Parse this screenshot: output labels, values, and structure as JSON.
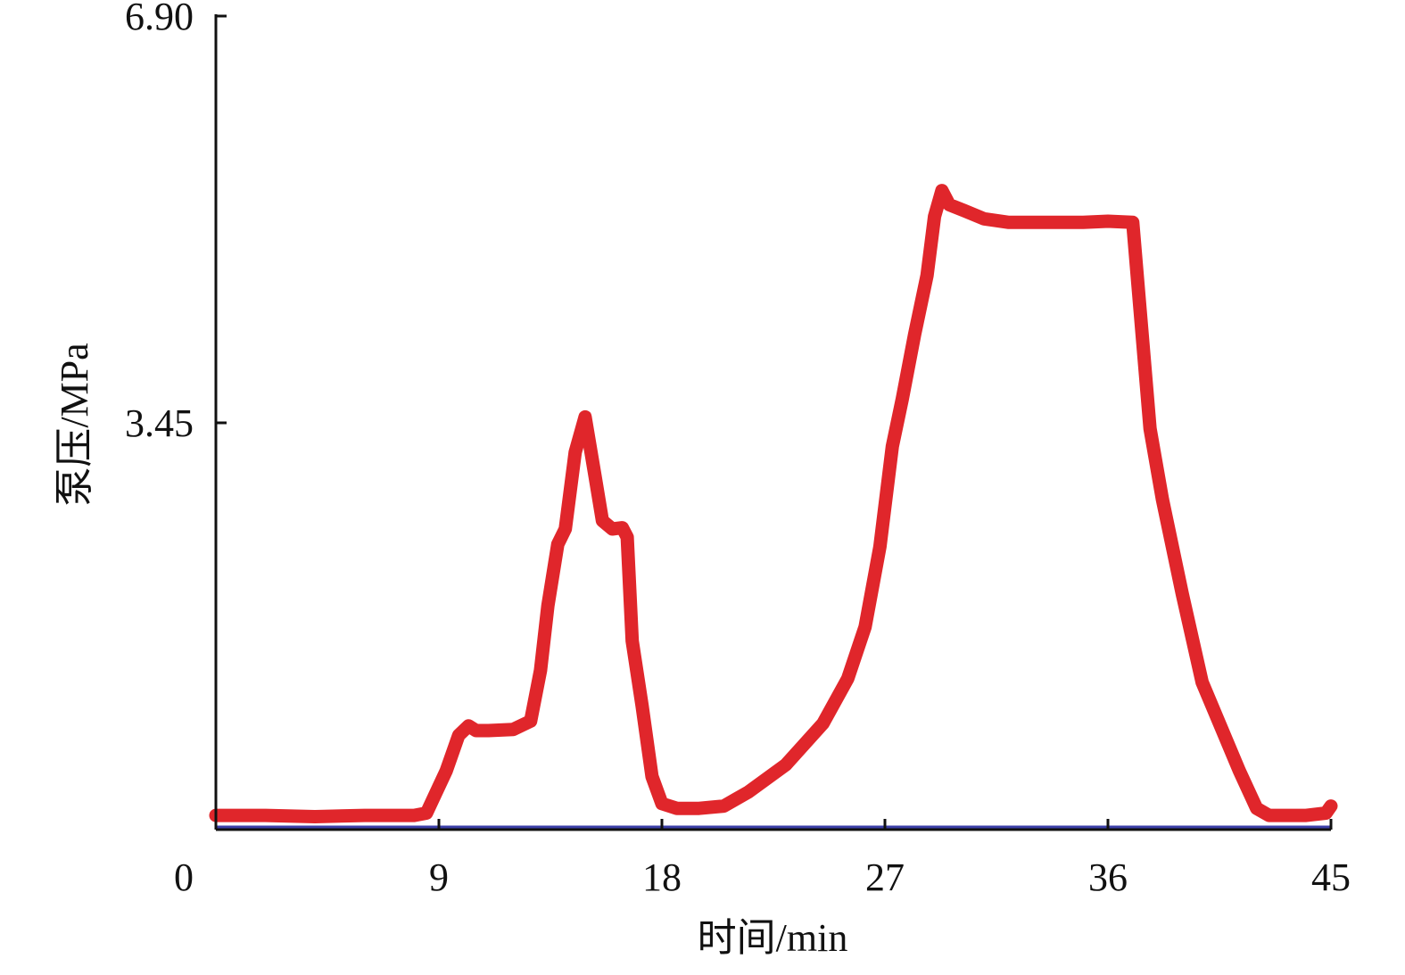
{
  "chart_data": {
    "type": "line",
    "xlabel": "时间/min",
    "ylabel": "泵压/MPa",
    "xlim": [
      0,
      45
    ],
    "ylim": [
      0,
      6.9
    ],
    "x_ticks": [
      0,
      9,
      18,
      27,
      36,
      45
    ],
    "x_tick_labels": [
      "0",
      "9",
      "18",
      "27",
      "36",
      "45"
    ],
    "y_ticks": [
      3.45,
      6.9
    ],
    "y_tick_labels": [
      "3.45",
      "6.90"
    ],
    "grid": false,
    "colors": {
      "series": "#e0262b",
      "baseline": "#3b3fa8",
      "axis": "#111111"
    },
    "series": [
      {
        "color": "#e0262b",
        "x": [
          0,
          2,
          4,
          6,
          8,
          8.5,
          9.3,
          9.8,
          10.2,
          10.5,
          11,
          12,
          12.7,
          13.1,
          13.4,
          13.8,
          14.1,
          14.5,
          14.9,
          15.3,
          15.6,
          16,
          16.4,
          16.6,
          16.8,
          17.2,
          17.6,
          18,
          18.6,
          19.5,
          20.5,
          21.5,
          23,
          24.5,
          25.5,
          26.2,
          26.8,
          27.3,
          27.7,
          28.2,
          28.7,
          29,
          29.3,
          29.6,
          30.2,
          31,
          32,
          33,
          34,
          35,
          36,
          37,
          37.3,
          37.7,
          38.2,
          39,
          39.8,
          40.5,
          41.3,
          42,
          42.5,
          43,
          44,
          44.8,
          45
        ],
        "y": [
          0.12,
          0.12,
          0.11,
          0.12,
          0.12,
          0.14,
          0.5,
          0.8,
          0.88,
          0.84,
          0.84,
          0.85,
          0.92,
          1.35,
          1.9,
          2.42,
          2.55,
          3.2,
          3.5,
          3.0,
          2.62,
          2.55,
          2.56,
          2.48,
          1.6,
          1.05,
          0.45,
          0.22,
          0.18,
          0.18,
          0.2,
          0.32,
          0.55,
          0.9,
          1.28,
          1.72,
          2.4,
          3.25,
          3.65,
          4.2,
          4.7,
          5.2,
          5.42,
          5.3,
          5.25,
          5.18,
          5.15,
          5.15,
          5.15,
          5.15,
          5.16,
          5.15,
          4.4,
          3.4,
          2.8,
          2.0,
          1.25,
          0.9,
          0.5,
          0.18,
          0.12,
          0.12,
          0.12,
          0.14,
          0.2
        ]
      }
    ]
  }
}
